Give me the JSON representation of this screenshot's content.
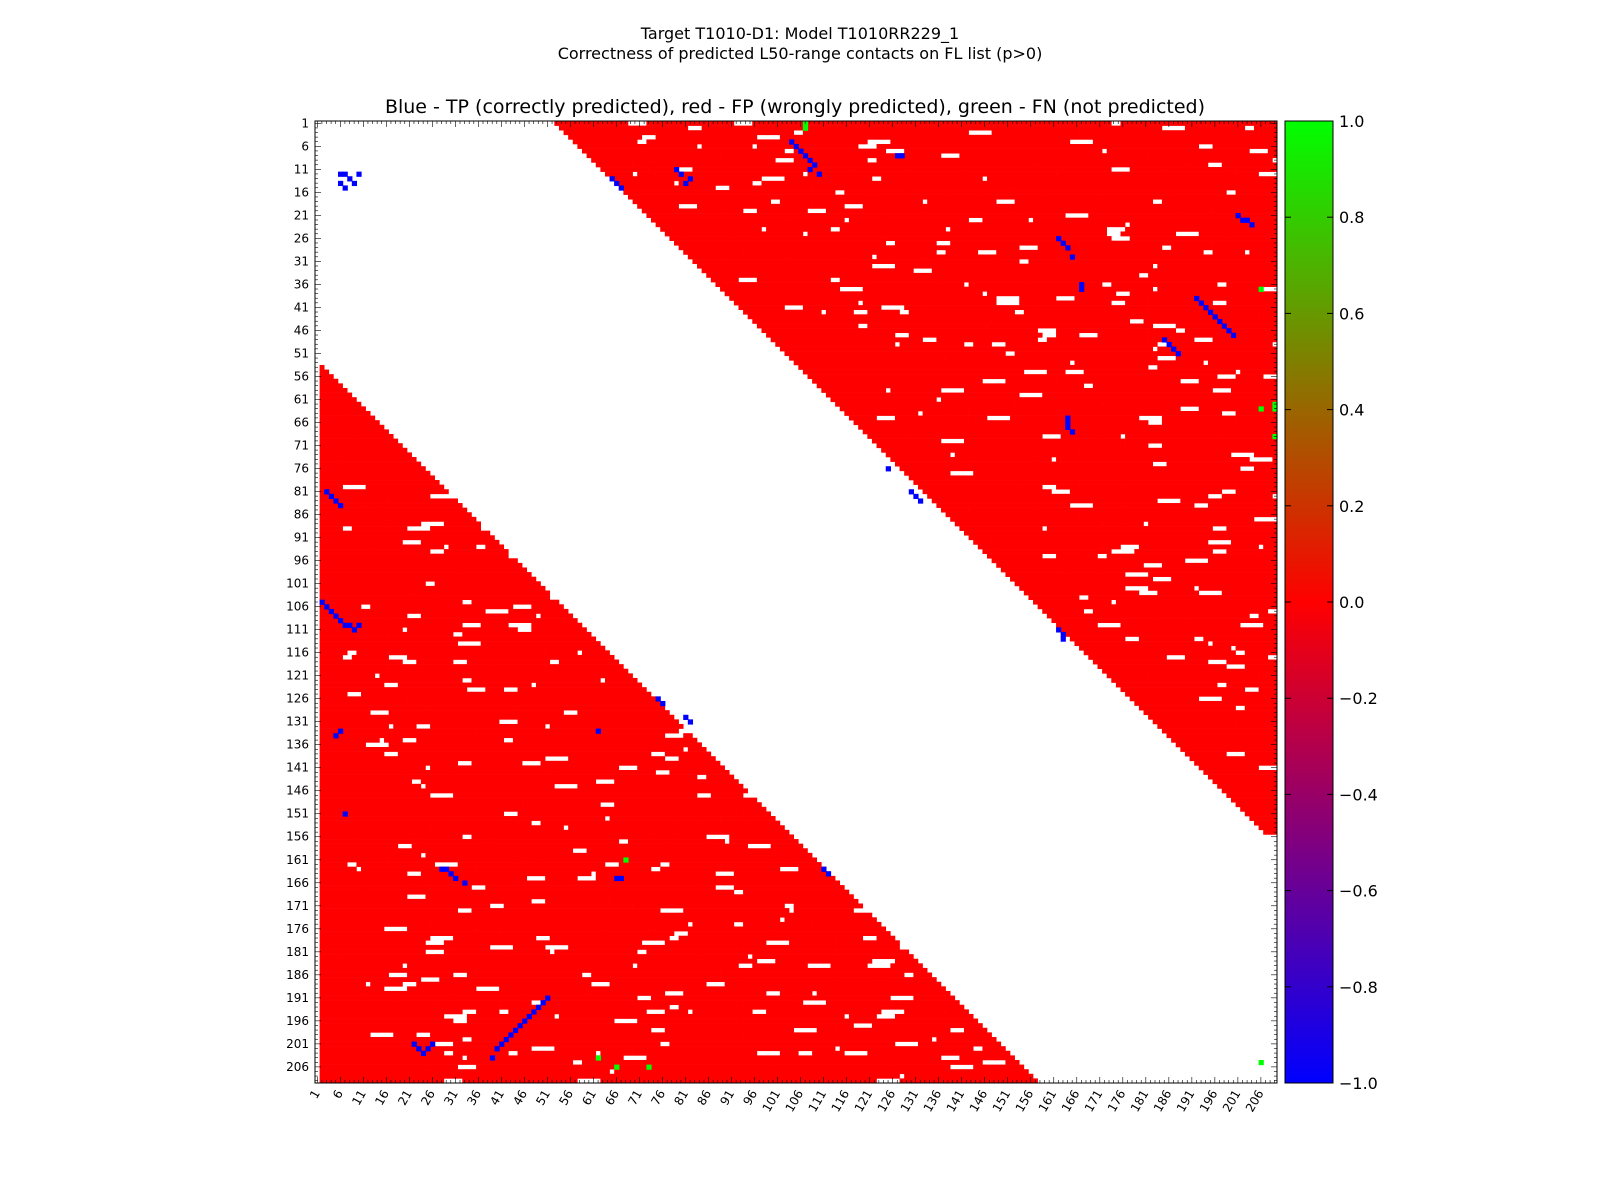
{
  "suptitle_line1": "Target T1010-D1: Model T1010RR229_1",
  "suptitle_line2": "Correctness of predicted L50-range contacts on FL list (p>0)",
  "chart_data": {
    "type": "heatmap",
    "title": "Blue - TP (correctly predicted), red - FP (wrongly predicted), green - FN (not predicted)",
    "n_residues": 209,
    "x_tick_labels": [
      "1",
      "6",
      "11",
      "16",
      "21",
      "26",
      "31",
      "36",
      "41",
      "46",
      "51",
      "56",
      "61",
      "66",
      "71",
      "76",
      "81",
      "86",
      "91",
      "96",
      "101",
      "106",
      "111",
      "116",
      "121",
      "126",
      "131",
      "136",
      "141",
      "146",
      "151",
      "156",
      "161",
      "166",
      "171",
      "176",
      "181",
      "186",
      "191",
      "196",
      "201",
      "206"
    ],
    "y_tick_labels": [
      "1",
      "6",
      "11",
      "16",
      "21",
      "26",
      "31",
      "36",
      "41",
      "46",
      "51",
      "56",
      "61",
      "66",
      "71",
      "76",
      "81",
      "86",
      "91",
      "96",
      "101",
      "106",
      "111",
      "116",
      "121",
      "126",
      "131",
      "136",
      "141",
      "146",
      "151",
      "156",
      "161",
      "166",
      "171",
      "176",
      "181",
      "186",
      "191",
      "196",
      "201",
      "206"
    ],
    "colorbar": {
      "range": [
        -1.0,
        1.0
      ],
      "tick_labels": [
        "1.0",
        "0.8",
        "0.6",
        "0.4",
        "0.2",
        "0.0",
        "−0.2",
        "−0.4",
        "−0.6",
        "−0.8",
        "−1.0"
      ],
      "color_low": "#0000ff",
      "color_mid": "#ff0000",
      "color_high": "#00ff00"
    },
    "colors": {
      "TP": "#0000ff",
      "FP": "#ff0000",
      "FN": "#00ff00"
    },
    "upper_triangle_fp_region": {
      "diagonal_offset": 52,
      "rows": [
        1,
        155
      ]
    },
    "lower_triangle_fp_region": {
      "diagonal_offset": 52,
      "rows": [
        53,
        209
      ]
    },
    "tp_contacts": [
      [
        104,
        5
      ],
      [
        105,
        6
      ],
      [
        106,
        7
      ],
      [
        107,
        8
      ],
      [
        108,
        9
      ],
      [
        109,
        10
      ],
      [
        108,
        11
      ],
      [
        110,
        12
      ],
      [
        65,
        13
      ],
      [
        66,
        14
      ],
      [
        67,
        15
      ],
      [
        79,
        11
      ],
      [
        80,
        12
      ],
      [
        81,
        14
      ],
      [
        82,
        13
      ],
      [
        127,
        8
      ],
      [
        128,
        8
      ],
      [
        201,
        21
      ],
      [
        202,
        22
      ],
      [
        203,
        22
      ],
      [
        204,
        23
      ],
      [
        162,
        26
      ],
      [
        163,
        27
      ],
      [
        164,
        28
      ],
      [
        165,
        30
      ],
      [
        192,
        39
      ],
      [
        193,
        40
      ],
      [
        194,
        41
      ],
      [
        195,
        42
      ],
      [
        196,
        43
      ],
      [
        197,
        44
      ],
      [
        198,
        45
      ],
      [
        199,
        46
      ],
      [
        200,
        47
      ],
      [
        185,
        48
      ],
      [
        186,
        49
      ],
      [
        187,
        50
      ],
      [
        188,
        51
      ],
      [
        164,
        65
      ],
      [
        164,
        66
      ],
      [
        164,
        67
      ],
      [
        165,
        68
      ],
      [
        125,
        76
      ],
      [
        130,
        81
      ],
      [
        131,
        82
      ],
      [
        132,
        83
      ],
      [
        162,
        111
      ],
      [
        163,
        112
      ],
      [
        163,
        113
      ],
      [
        167,
        36
      ],
      [
        167,
        37
      ],
      [
        6,
        12
      ],
      [
        7,
        12
      ],
      [
        8,
        13
      ],
      [
        9,
        14
      ],
      [
        10,
        12
      ],
      [
        6,
        14
      ],
      [
        7,
        15
      ],
      [
        3,
        81
      ],
      [
        4,
        82
      ],
      [
        5,
        83
      ],
      [
        6,
        84
      ],
      [
        2,
        105
      ],
      [
        3,
        106
      ],
      [
        4,
        107
      ],
      [
        5,
        108
      ],
      [
        6,
        109
      ],
      [
        7,
        110
      ],
      [
        8,
        110
      ],
      [
        9,
        111
      ],
      [
        10,
        110
      ],
      [
        5,
        134
      ],
      [
        6,
        133
      ],
      [
        7,
        151
      ],
      [
        22,
        201
      ],
      [
        23,
        202
      ],
      [
        24,
        203
      ],
      [
        25,
        202
      ],
      [
        26,
        201
      ],
      [
        28,
        163
      ],
      [
        29,
        163
      ],
      [
        30,
        164
      ],
      [
        31,
        165
      ],
      [
        33,
        166
      ],
      [
        39,
        204
      ],
      [
        40,
        202
      ],
      [
        41,
        201
      ],
      [
        42,
        200
      ],
      [
        43,
        199
      ],
      [
        44,
        198
      ],
      [
        45,
        197
      ],
      [
        46,
        196
      ],
      [
        47,
        195
      ],
      [
        48,
        194
      ],
      [
        49,
        193
      ],
      [
        50,
        192
      ],
      [
        51,
        191
      ],
      [
        75,
        126
      ],
      [
        76,
        127
      ],
      [
        81,
        130
      ],
      [
        82,
        131
      ],
      [
        62,
        133
      ],
      [
        66,
        165
      ],
      [
        67,
        165
      ],
      [
        111,
        163
      ],
      [
        112,
        164
      ]
    ],
    "fn_contacts": [
      [
        107,
        1
      ],
      [
        209,
        63
      ],
      [
        209,
        62
      ],
      [
        209,
        69
      ],
      [
        206,
        205
      ],
      [
        206,
        37
      ],
      [
        206,
        63
      ],
      [
        66,
        206
      ],
      [
        73,
        206
      ],
      [
        62,
        204
      ],
      [
        68,
        161
      ],
      [
        107,
        2
      ]
    ]
  }
}
